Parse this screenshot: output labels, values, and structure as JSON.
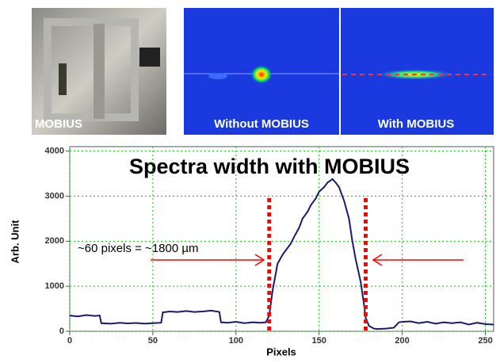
{
  "images": [
    {
      "label": "MOBIUS"
    },
    {
      "label": "Without MOBIUS"
    },
    {
      "label": "With MOBIUS"
    }
  ],
  "chart_data": {
    "type": "line",
    "title": "Spectra width with MOBIUS",
    "x_label": "Pixels",
    "y_label": "Arb. Unit",
    "annotation": "~60 pixels = ~1800 µm",
    "markers": [
      {
        "x": 120,
        "color": "#ff0000"
      },
      {
        "x": 178,
        "color": "#ff0000"
      }
    ],
    "x": [
      0,
      5,
      10,
      15,
      18,
      19,
      25,
      30,
      35,
      40,
      45,
      50,
      55,
      56,
      60,
      65,
      70,
      75,
      80,
      85,
      90,
      91,
      95,
      100,
      105,
      110,
      115,
      118,
      120,
      122,
      125,
      128,
      130,
      133,
      135,
      138,
      140,
      143,
      145,
      148,
      150,
      153,
      155,
      157,
      158,
      160,
      162,
      165,
      168,
      170,
      172,
      175,
      177,
      178,
      180,
      183,
      185,
      190,
      195,
      198,
      200,
      205,
      210,
      215,
      220,
      225,
      230,
      235,
      240,
      245,
      250,
      255
    ],
    "series": [
      {
        "color": "#1a1a6e",
        "values": [
          350,
          330,
          360,
          340,
          350,
          180,
          170,
          190,
          175,
          185,
          170,
          180,
          190,
          420,
          440,
          430,
          450,
          430,
          440,
          460,
          430,
          200,
          190,
          210,
          180,
          200,
          190,
          200,
          350,
          900,
          1500,
          1700,
          1800,
          1950,
          2100,
          2300,
          2500,
          2650,
          2800,
          2950,
          3100,
          3200,
          3300,
          3350,
          3380,
          3300,
          3200,
          2900,
          2500,
          2000,
          1600,
          1100,
          600,
          300,
          120,
          60,
          50,
          60,
          80,
          200,
          210,
          220,
          180,
          210,
          170,
          200,
          180,
          200,
          150,
          190,
          160,
          150
        ]
      }
    ],
    "xlim": [
      0,
      255
    ],
    "ylim": [
      0,
      4100
    ],
    "xticks": [
      0,
      50,
      100,
      150,
      200,
      250
    ],
    "yticks": [
      0,
      1000,
      2000,
      3000,
      4000
    ],
    "grid": true,
    "grid_color": "#00cc00"
  }
}
